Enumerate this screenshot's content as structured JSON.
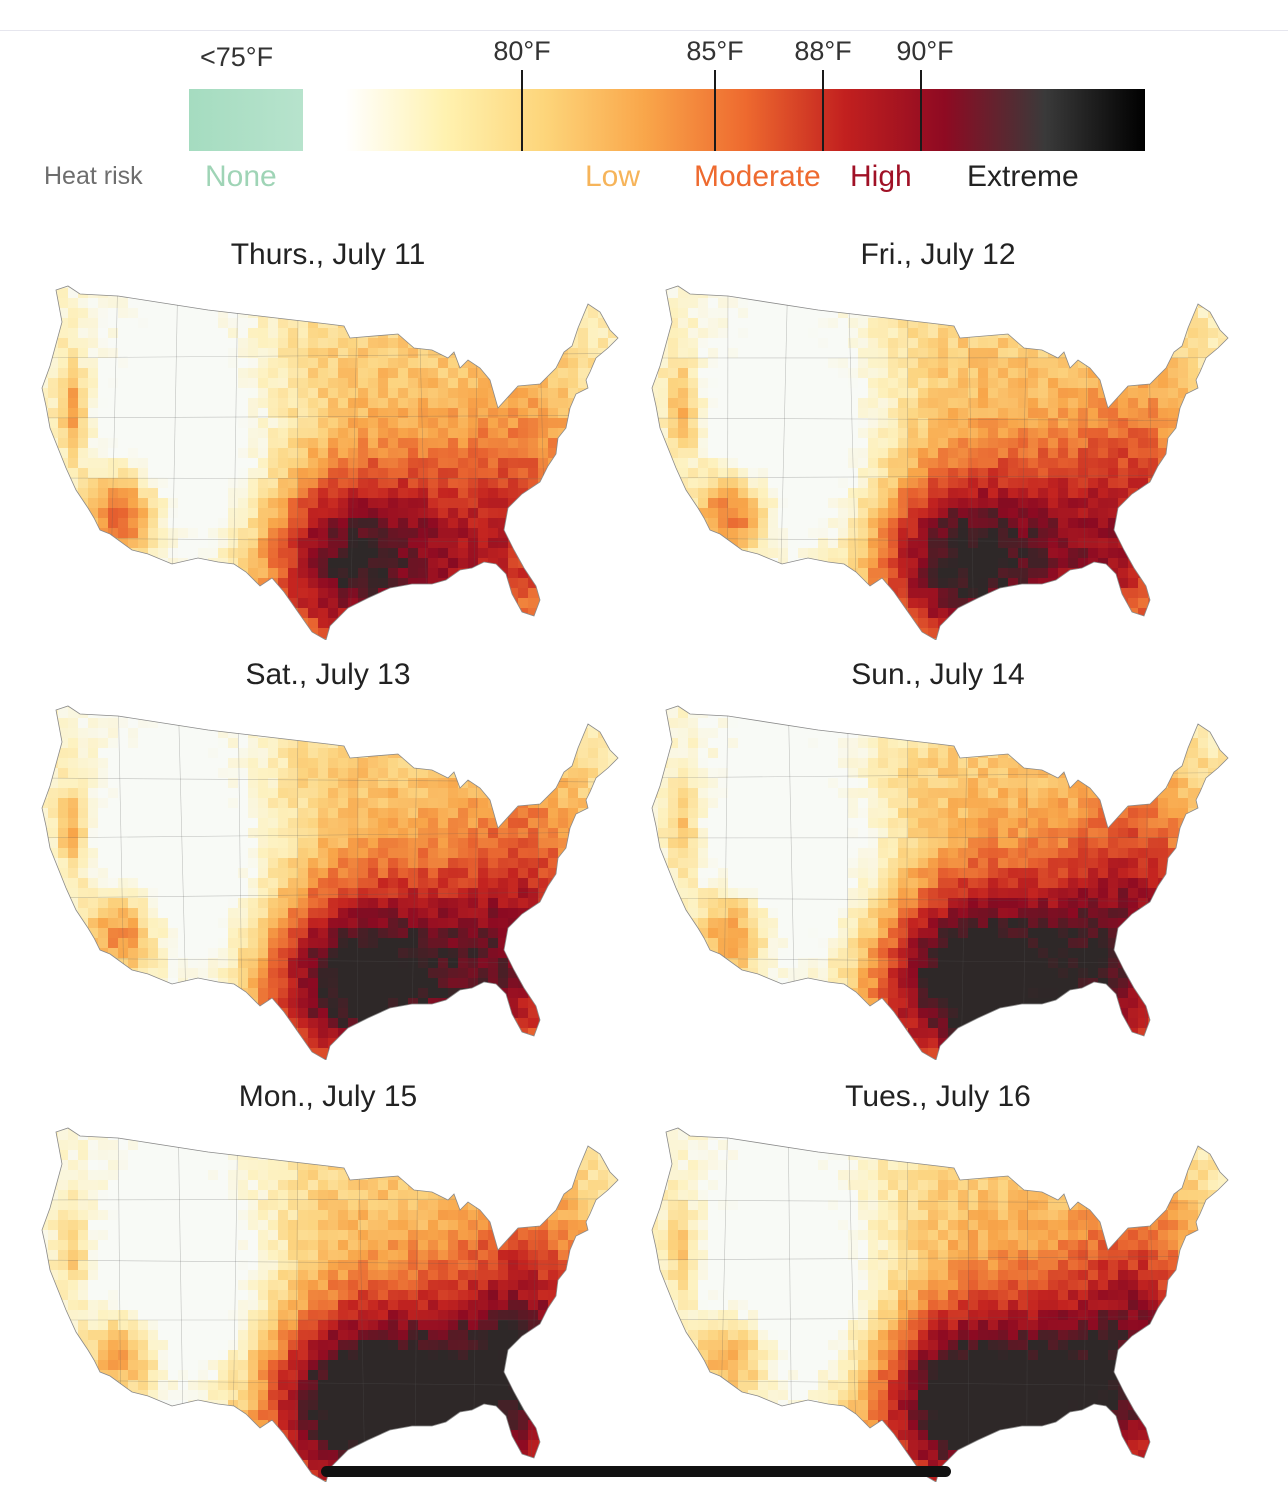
{
  "legend": {
    "title": "Heat risk",
    "lt_label": "<75°F",
    "ticks": [
      {
        "label": "80°F",
        "value": 80
      },
      {
        "label": "85°F",
        "value": 85
      },
      {
        "label": "88°F",
        "value": 88
      },
      {
        "label": "90°F",
        "value": 90
      }
    ],
    "categories": [
      {
        "label": "None",
        "color": "#9fd4b6"
      },
      {
        "label": "Low",
        "color": "#f6b45a"
      },
      {
        "label": "Moderate",
        "color": "#ee6a2f"
      },
      {
        "label": "High",
        "color": "#a01126"
      },
      {
        "label": "Extreme",
        "color": "#222222"
      }
    ],
    "none_color": "#a5dcc0",
    "ramp_colors": [
      "#ffffff",
      "#fff2b0",
      "#fdd57a",
      "#f9a64a",
      "#ee6a2f",
      "#c2201f",
      "#8e0a22",
      "#3a3a3a",
      "#000000"
    ]
  },
  "maps": [
    {
      "title": "Thurs., July 11",
      "intensity": 0.45
    },
    {
      "title": "Fri., July 12",
      "intensity": 0.55
    },
    {
      "title": "Sat., July 13",
      "intensity": 0.68
    },
    {
      "title": "Sun., July 14",
      "intensity": 0.78
    },
    {
      "title": "Mon., July 15",
      "intensity": 0.88
    },
    {
      "title": "Tues., July 16",
      "intensity": 0.85
    }
  ]
}
